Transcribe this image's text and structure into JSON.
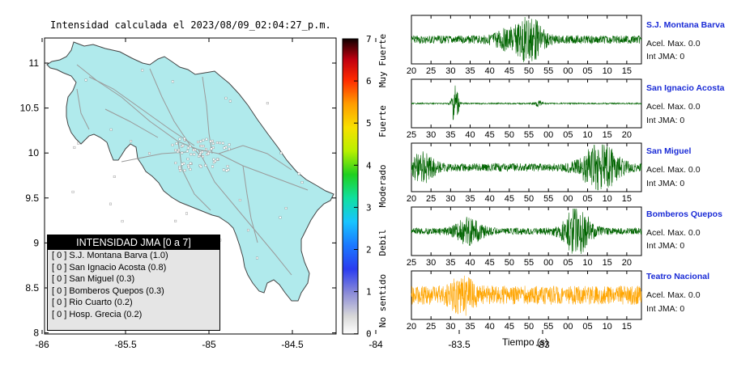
{
  "map": {
    "title": "Intensidad calculada el 2023/08/09_02:04:27_p.m.",
    "x_ticks": [
      "-86",
      "-85.5",
      "-85",
      "-84.5",
      "-84",
      "-83.5",
      "-83"
    ],
    "y_ticks": [
      "11",
      "10.5",
      "10",
      "9.5",
      "9",
      "8.5",
      "8"
    ],
    "land_color": "#b0eaec"
  },
  "legend": {
    "title": "INTENSIDAD JMA [0 a 7]",
    "items": [
      "[ 0 ]  S.J. Montana Barva (1.0)",
      "[ 0 ]  San Ignacio Acosta (0.8)",
      "[ 0 ]  San Miguel (0.3)",
      "[ 0 ]  Bomberos Quepos (0.3)",
      "[ 0 ]  Rio Cuarto (0.2)",
      "[ 0 ]  Hosp. Grecia (0.2)"
    ]
  },
  "colorbar": {
    "ticks": [
      "7",
      "6",
      "5",
      "4",
      "3",
      "2",
      "1",
      "0"
    ],
    "labels": [
      "Muy Fuerte",
      "Fuerte",
      "Moderado",
      "Debil",
      "No sentido"
    ]
  },
  "chart_data": [
    {
      "type": "line",
      "station": "S.J. Montana Barva",
      "accel_label": "Acel. Max. 0.0",
      "int_label": "Int JMA: 0",
      "color": "#006400",
      "x_ticks": [
        "20",
        "25",
        "30",
        "35",
        "40",
        "45",
        "50",
        "55",
        "00",
        "05",
        "10",
        "15"
      ],
      "x_ticks_units": "seconds"
    },
    {
      "type": "line",
      "station": "San Ignacio Acosta",
      "accel_label": "Acel. Max. 0.0",
      "int_label": "Int JMA: 0",
      "color": "#006400",
      "x_ticks": [
        "25",
        "30",
        "35",
        "40",
        "45",
        "50",
        "55",
        "00",
        "05",
        "10",
        "15",
        "20"
      ],
      "x_ticks_units": "seconds"
    },
    {
      "type": "line",
      "station": "San Miguel",
      "accel_label": "Acel. Max. 0.0",
      "int_label": "Int JMA: 0",
      "color": "#006400",
      "x_ticks": [
        "20",
        "25",
        "30",
        "35",
        "40",
        "45",
        "50",
        "55",
        "00",
        "05",
        "10",
        "15"
      ],
      "x_ticks_units": "seconds"
    },
    {
      "type": "line",
      "station": "Bomberos Quepos",
      "accel_label": "Acel. Max. 0.0",
      "int_label": "Int JMA: 0",
      "color": "#006400",
      "x_ticks": [
        "25",
        "30",
        "35",
        "40",
        "45",
        "50",
        "55",
        "00",
        "05",
        "10",
        "15",
        "20"
      ],
      "x_ticks_units": "seconds"
    },
    {
      "type": "line",
      "station": "Teatro Nacional",
      "accel_label": "Acel. Max. 0.0",
      "int_label": "Int JMA: 0",
      "color": "#ffa500",
      "x_ticks": [
        "20",
        "25",
        "30",
        "35",
        "40",
        "45",
        "50",
        "55",
        "00",
        "05",
        "10",
        "15"
      ],
      "x_ticks_units": "seconds",
      "xlabel": "Tiempo (s)"
    }
  ]
}
